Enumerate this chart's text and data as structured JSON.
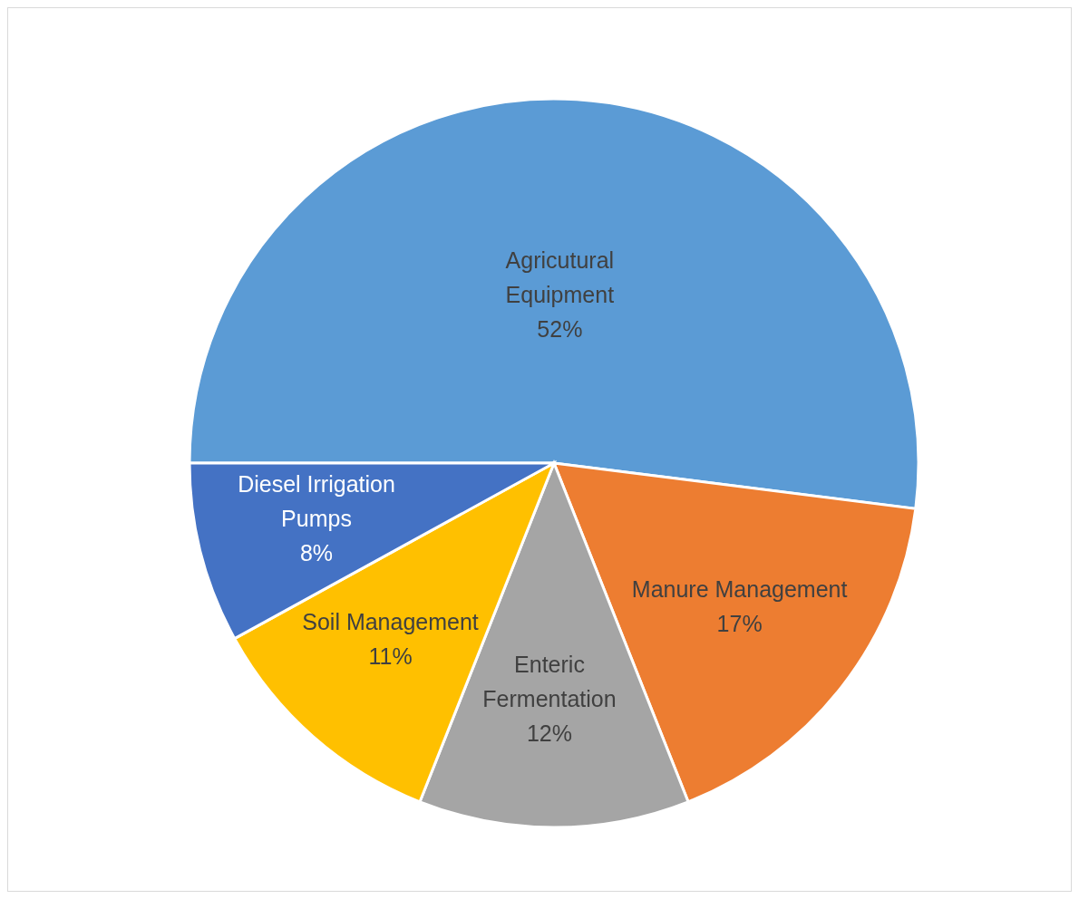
{
  "chart_data": {
    "type": "pie",
    "categories": [
      "Agricutural Equipment",
      "Manure Management",
      "Enteric Fermentation",
      "Soil Management",
      "Diesel Irrigation Pumps"
    ],
    "values": [
      52,
      17,
      12,
      11,
      8
    ],
    "colors": [
      "#5b9bd5",
      "#ed7d31",
      "#a5a5a5",
      "#ffc000",
      "#4472c4"
    ],
    "value_labels": [
      "52%",
      "17%",
      "12%",
      "11%",
      "8%"
    ],
    "legend": false
  }
}
